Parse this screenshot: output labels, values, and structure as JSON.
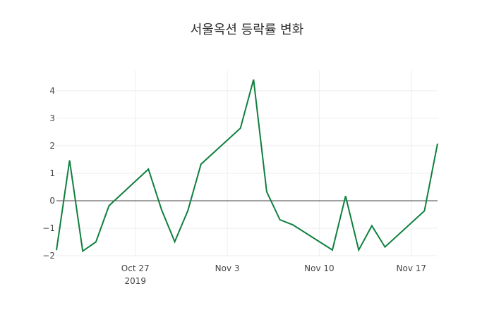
{
  "chart_data": {
    "type": "line",
    "title": "서울옥션 등락률 변화",
    "xlabel": "",
    "ylabel": "",
    "ylim": [
      -2.05,
      4.74
    ],
    "grid": true,
    "legend": null,
    "x_ticks": [
      {
        "label": "Oct 27",
        "sub": "2019",
        "date": "2019-10-27"
      },
      {
        "label": "Nov 3",
        "sub": "",
        "date": "2019-11-03"
      },
      {
        "label": "Nov 10",
        "sub": "",
        "date": "2019-11-10"
      },
      {
        "label": "Nov 17",
        "sub": "",
        "date": "2019-11-17"
      }
    ],
    "y_ticks": [
      -2,
      -1,
      0,
      1,
      2,
      3,
      4
    ],
    "series": [
      {
        "name": "등락률",
        "color": "#0f7f3f",
        "x": [
          "2019-10-21",
          "2019-10-22",
          "2019-10-23",
          "2019-10-24",
          "2019-10-25",
          "2019-10-28",
          "2019-10-29",
          "2019-10-30",
          "2019-10-31",
          "2019-11-01",
          "2019-11-04",
          "2019-11-05",
          "2019-11-06",
          "2019-11-07",
          "2019-11-08",
          "2019-11-11",
          "2019-11-12",
          "2019-11-13",
          "2019-11-14",
          "2019-11-15",
          "2019-11-18",
          "2019-11-19"
        ],
        "values": [
          -1.8,
          1.47,
          -1.83,
          -1.5,
          -0.18,
          1.15,
          -0.33,
          -1.49,
          -0.36,
          1.33,
          2.64,
          4.41,
          0.33,
          -0.69,
          -0.88,
          -1.79,
          0.17,
          -1.79,
          -0.91,
          -1.68,
          -0.37,
          2.08
        ]
      }
    ]
  }
}
